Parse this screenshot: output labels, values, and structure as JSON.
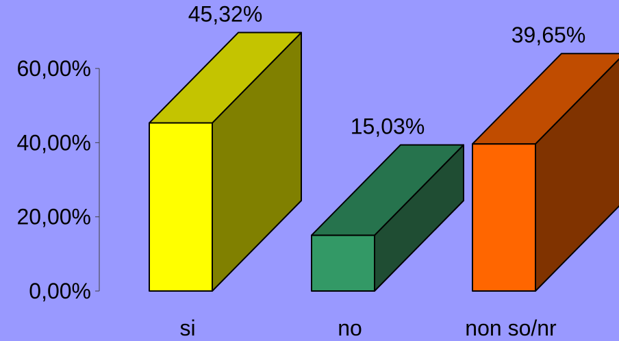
{
  "background_color": "#9999ff",
  "chart_data": {
    "type": "bar",
    "style": "3d-block",
    "categories": [
      "si",
      "no",
      "non so/nr"
    ],
    "values": [
      45.32,
      15.03,
      39.65
    ],
    "value_labels": [
      "45,32%",
      "15,03%",
      "39,65%"
    ],
    "ylim": [
      0,
      60
    ],
    "yticks": [
      0,
      20,
      40,
      60
    ],
    "ytick_labels": [
      "0,00%",
      "20,00%",
      "40,00%",
      "60,00%"
    ],
    "grid": false,
    "legend": "none",
    "colors": [
      {
        "front": "#ffff00",
        "top": "#c4c400",
        "side": "#808000"
      },
      {
        "front": "#339966",
        "top": "#26734d",
        "side": "#1f4d33"
      },
      {
        "front": "#ff6600",
        "top": "#c04c00",
        "side": "#803300"
      }
    ]
  }
}
